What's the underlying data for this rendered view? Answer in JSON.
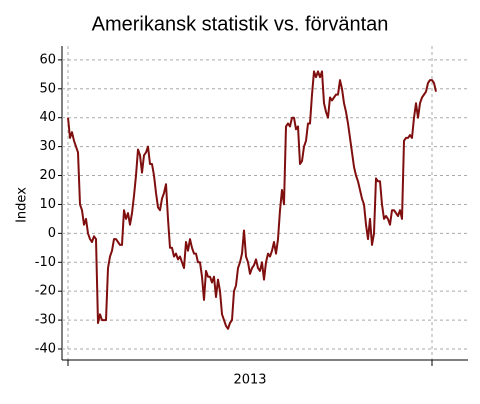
{
  "chart_data": {
    "type": "line",
    "title": "Amerikansk statistik vs. förväntan",
    "ylabel": "Index",
    "xlabel": "2013",
    "series": [
      {
        "name": "Index",
        "color": "#7f0f0f",
        "values": [
          40,
          33,
          35,
          32,
          30,
          28,
          10,
          8,
          3,
          5,
          0,
          -2,
          -3,
          -1,
          -2,
          -31,
          -28,
          -30,
          -30,
          -30,
          -12,
          -8,
          -6,
          -2,
          -2,
          -3,
          -4,
          -4,
          8,
          5,
          7,
          3,
          7,
          13,
          20,
          29,
          27,
          21,
          27,
          28,
          30,
          24,
          24,
          20,
          14,
          9,
          8,
          12,
          14,
          17,
          5,
          -5,
          -5,
          -8,
          -7,
          -9,
          -8,
          -10,
          -12,
          -3,
          -6,
          -2,
          -5,
          -7,
          -7,
          -10,
          -10,
          -15,
          -23,
          -13,
          -15,
          -15,
          -17,
          -15,
          -22,
          -16,
          -20,
          -28,
          -30,
          -32,
          -33,
          -31,
          -30,
          -20,
          -18,
          -12,
          -10,
          -7,
          1,
          -8,
          -10,
          -14,
          -12,
          -11,
          -9,
          -12,
          -13,
          -10,
          -16,
          -10,
          -7,
          -8,
          -6,
          -3,
          -7,
          -2,
          8,
          15,
          10,
          37,
          38,
          37,
          40,
          40,
          36,
          37,
          24,
          25,
          30,
          32,
          38,
          38,
          48,
          56,
          54,
          56,
          54,
          56,
          45,
          42,
          40,
          47,
          46,
          47,
          48,
          48,
          53,
          50,
          45,
          42,
          38,
          33,
          28,
          23,
          20,
          18,
          15,
          12,
          10,
          3,
          -2,
          5,
          -4,
          0,
          19,
          18,
          18,
          10,
          5,
          6,
          5,
          3,
          8,
          8,
          7,
          6,
          8,
          5,
          32,
          33,
          33,
          34,
          33,
          40,
          45,
          40,
          45,
          47,
          48,
          49,
          52,
          53,
          53,
          52,
          49
        ]
      }
    ],
    "ylim": [
      -43.8,
      64.8
    ],
    "yticks": [
      -40,
      -30,
      -20,
      -10,
      0,
      10,
      20,
      30,
      40,
      50,
      60
    ],
    "grid": true
  }
}
